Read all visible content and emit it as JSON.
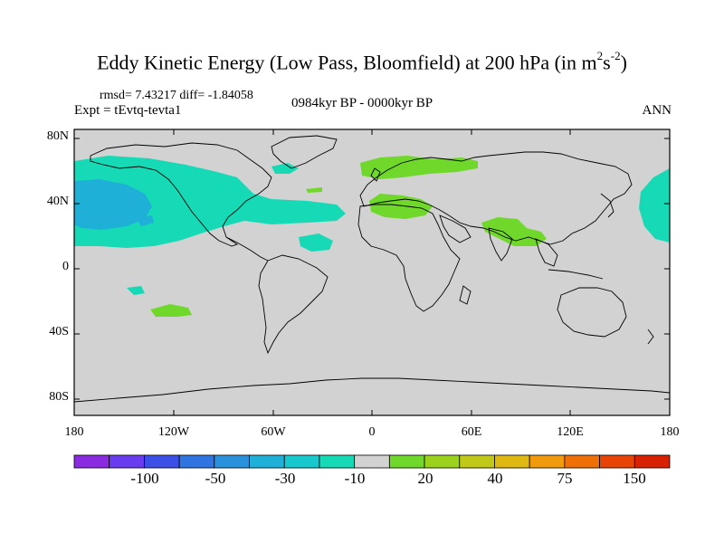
{
  "title": {
    "main": "Eddy Kinetic Energy (Low Pass, Bloomfield) at 200 hPa (in m",
    "sup1": "2",
    "mid": "s",
    "sup2": "-2",
    "end": ")"
  },
  "stats": "rmsd= 7.43217 diff= -1.84058",
  "expt": "Expt = tEvtq-tevta1",
  "period": "0984kyr BP - 0000kyr BP",
  "season": "ANN",
  "lat_ticks": [
    "80N",
    "40N",
    "0",
    "40S",
    "80S"
  ],
  "lon_ticks": [
    "180",
    "120W",
    "60W",
    "0",
    "60E",
    "120E",
    "180"
  ],
  "colorbar": {
    "colors": [
      "#8a2be2",
      "#6a3cf0",
      "#3c50e8",
      "#2f74e0",
      "#2a92dc",
      "#1fb0d8",
      "#17c8cf",
      "#16dab6",
      "#d2d2d2",
      "#70d82a",
      "#9ad21e",
      "#c0c818",
      "#e0b812",
      "#f09a0c",
      "#f07008",
      "#e84406",
      "#d82004"
    ],
    "labels": [
      "-100",
      "-50",
      "-30",
      "-10",
      "20",
      "40",
      "75",
      "150"
    ]
  },
  "map_colors": {
    "land_background": "#d2d2d2",
    "negative": "#16dab6",
    "negative_strong": "#1fb0d8",
    "positive": "#70d82a"
  }
}
